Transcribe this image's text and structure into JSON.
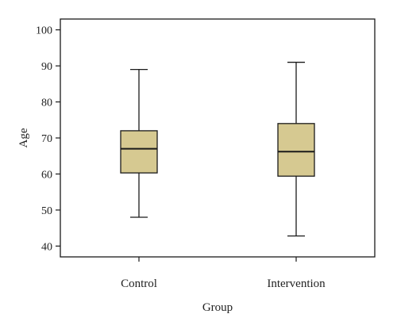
{
  "chart_data": {
    "type": "box",
    "title": "",
    "xlabel": "Group",
    "ylabel": "Age",
    "ylim": [
      37,
      103
    ],
    "yticks": [
      40,
      50,
      60,
      70,
      80,
      90,
      100
    ],
    "grid": false,
    "categories": [
      "Control",
      "Intervention"
    ],
    "box_color": "#d6c991",
    "line_color": "#1a1a1a",
    "boxes": [
      {
        "category": "Control",
        "min": 48,
        "q1": 60.3,
        "median": 67,
        "q3": 72,
        "max": 89
      },
      {
        "category": "Intervention",
        "min": 42.8,
        "q1": 59.4,
        "median": 66.2,
        "q3": 74,
        "max": 91
      }
    ]
  }
}
